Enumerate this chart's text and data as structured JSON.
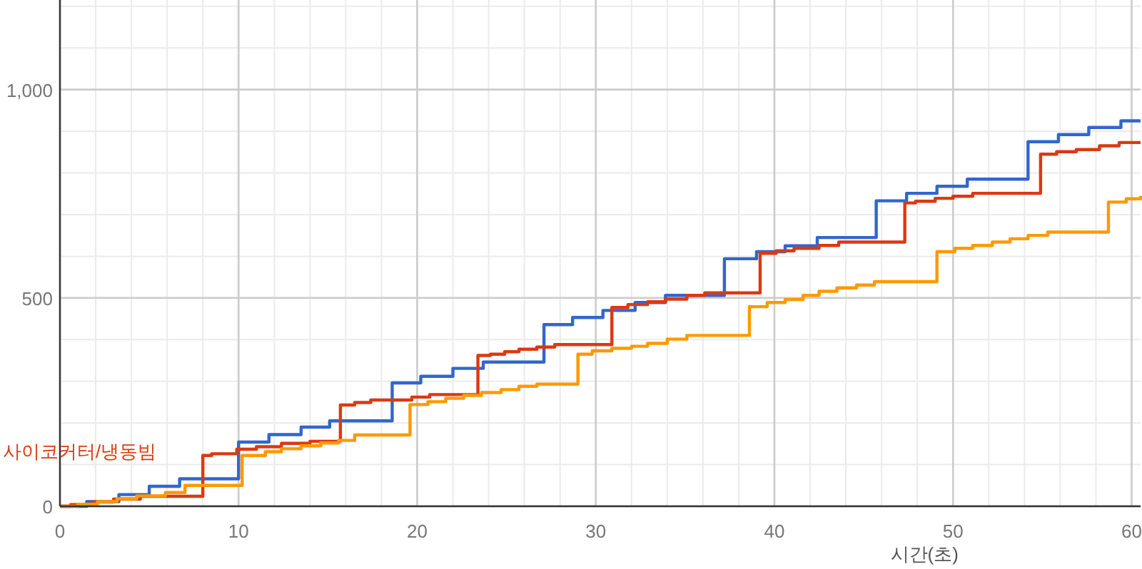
{
  "chart_data": {
    "type": "step",
    "xlabel": "시간(초)",
    "xlim": [
      0,
      60.5
    ],
    "xticks": [
      0,
      10,
      20,
      30,
      40,
      50,
      60
    ],
    "ylim": [
      0,
      1215
    ],
    "yticks": [
      0,
      500,
      {
        "value": 1000,
        "label": "1,000"
      }
    ],
    "grid": true,
    "legend": "left",
    "line_style": "solid",
    "marker": "none",
    "series": [
      {
        "color": "#3366cc",
        "x": [
          0,
          1.5,
          3.3,
          5.0,
          6.7,
          10.0,
          11.7,
          13.5,
          15.1,
          18.6,
          20.2,
          22.0,
          23.7,
          27.1,
          28.7,
          30.4,
          32.2,
          33.9,
          37.2,
          39.0,
          40.6,
          42.4,
          45.7,
          47.4,
          49.1,
          50.8,
          54.2,
          55.9,
          57.6,
          59.4,
          60.5
        ],
        "values": [
          0,
          11,
          28,
          48,
          66,
          154,
          172,
          190,
          205,
          296,
          312,
          331,
          346,
          436,
          453,
          470,
          489,
          506,
          594,
          611,
          625,
          645,
          733,
          751,
          768,
          785,
          875,
          892,
          909,
          925,
          925
        ]
      },
      {
        "name": "사이코커터/냉동빔",
        "color": "#dc3912",
        "x": [
          0,
          0.6,
          1.8,
          3.0,
          4.5,
          8.0,
          8.5,
          9.9,
          11.0,
          12.4,
          14.0,
          15.7,
          16.5,
          17.4,
          19.7,
          20.7,
          23.4,
          24.1,
          24.9,
          25.7,
          26.7,
          27.7,
          30.9,
          31.8,
          32.9,
          33.9,
          35.1,
          36.1,
          39.2,
          40.1,
          41.1,
          42.5,
          43.6,
          47.3,
          47.9,
          49.0,
          50.0,
          51.1,
          54.9,
          55.8,
          56.9,
          58.2,
          59.3,
          60.5
        ],
        "values": [
          0,
          4,
          10,
          17,
          24,
          122,
          126,
          137,
          143,
          151,
          156,
          243,
          249,
          255,
          262,
          268,
          362,
          365,
          371,
          377,
          382,
          388,
          477,
          484,
          491,
          497,
          506,
          512,
          607,
          613,
          619,
          626,
          634,
          728,
          732,
          739,
          744,
          751,
          845,
          851,
          856,
          865,
          873,
          873
        ]
      },
      {
        "color": "#ff9900",
        "x": [
          0,
          1.0,
          2.1,
          3.2,
          4.3,
          5.9,
          7.0,
          10.2,
          11.5,
          12.4,
          13.5,
          14.6,
          15.6,
          16.5,
          19.6,
          20.6,
          21.6,
          22.6,
          23.6,
          24.7,
          25.7,
          26.7,
          29.0,
          29.8,
          30.9,
          32.0,
          32.9,
          34.0,
          35.1,
          38.6,
          39.6,
          40.6,
          41.6,
          42.5,
          43.5,
          44.6,
          45.6,
          49.1,
          50.1,
          51.1,
          52.2,
          53.2,
          54.2,
          55.3,
          58.7,
          59.7,
          60.5
        ],
        "values": [
          0,
          5,
          11,
          18,
          25,
          33,
          50,
          122,
          131,
          138,
          145,
          152,
          158,
          171,
          244,
          251,
          259,
          266,
          273,
          280,
          288,
          293,
          365,
          373,
          379,
          384,
          391,
          401,
          410,
          479,
          489,
          496,
          506,
          516,
          524,
          531,
          539,
          611,
          619,
          626,
          634,
          642,
          650,
          658,
          730,
          738,
          745
        ]
      }
    ]
  }
}
